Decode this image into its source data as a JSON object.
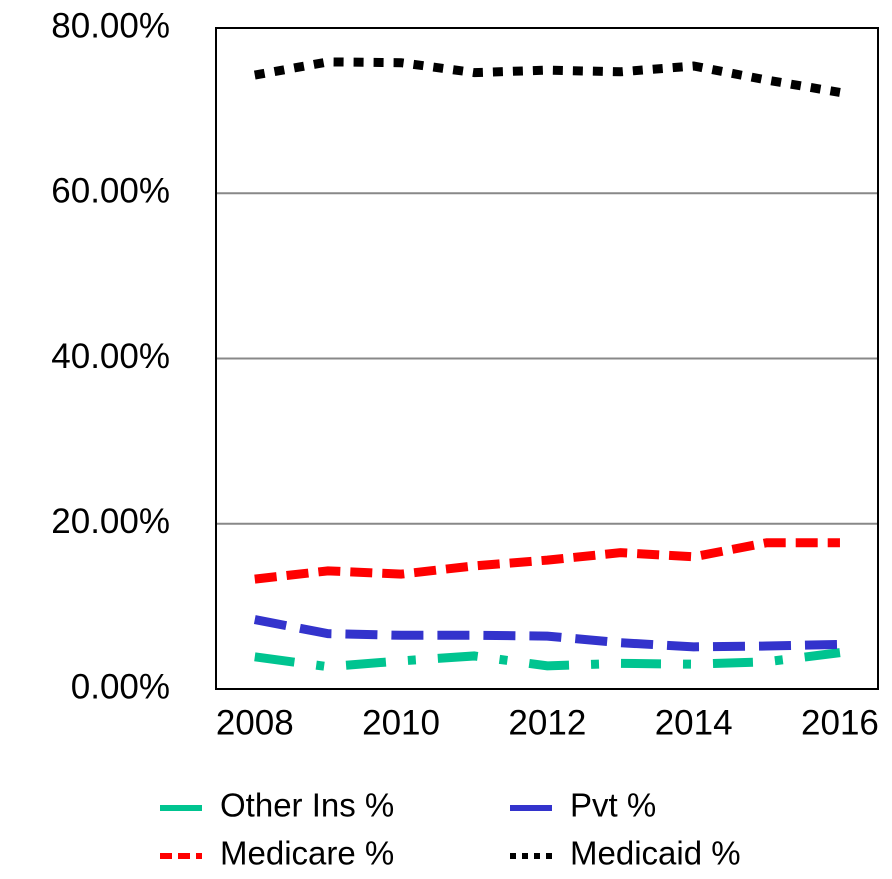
{
  "chart_data": {
    "type": "line",
    "x": [
      2008,
      2009,
      2010,
      2011,
      2012,
      2013,
      2014,
      2015,
      2016
    ],
    "xlim": [
      2007.47,
      2016.52
    ],
    "xticks": [
      2008,
      2010,
      2012,
      2014,
      2016
    ],
    "ylim": [
      0,
      80
    ],
    "yticks": [
      {
        "value": 0,
        "label": "0.00%"
      },
      {
        "value": 20,
        "label": "20.00%"
      },
      {
        "value": 40,
        "label": "40.00%"
      },
      {
        "value": 60,
        "label": "60.00%"
      },
      {
        "value": 80,
        "label": "80.00%"
      }
    ],
    "grid": true,
    "legend": "bottom",
    "series": [
      {
        "name": "Other Ins %",
        "color": "#00c490",
        "style": "dash-dot",
        "values": [
          3.9,
          2.7,
          3.4,
          4.0,
          2.8,
          3.1,
          3.0,
          3.3,
          4.4
        ]
      },
      {
        "name": "Pvt %",
        "color": "#3333cc",
        "style": "long-dash",
        "values": [
          8.4,
          6.7,
          6.5,
          6.5,
          6.4,
          5.6,
          5.1,
          5.2,
          5.4
        ]
      },
      {
        "name": "Medicare %",
        "color": "#ff0000",
        "style": "dash",
        "values": [
          13.3,
          14.3,
          13.9,
          14.9,
          15.6,
          16.5,
          16.0,
          17.7,
          17.7
        ]
      },
      {
        "name": "Medicaid %",
        "color": "#000000",
        "style": "dot",
        "values": [
          74.3,
          75.9,
          75.8,
          74.6,
          74.9,
          74.7,
          75.4,
          73.7,
          72.2
        ]
      }
    ]
  }
}
